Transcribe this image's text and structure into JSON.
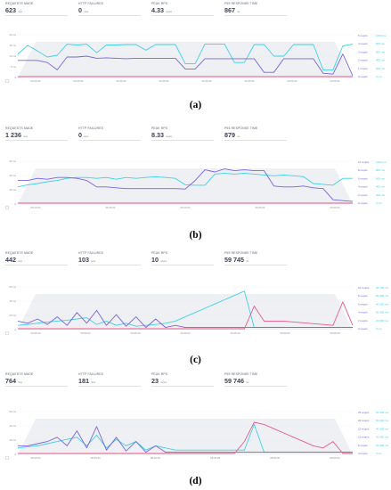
{
  "panels": [
    {
      "caption": "(a)",
      "stats": [
        {
          "label": "REQUESTS MADE",
          "value": "623",
          "unit": "reqs"
        },
        {
          "label": "HTTP FAILURES",
          "value": "0",
          "unit": "reqs"
        },
        {
          "label": "PEAK RPS",
          "value": "4.33",
          "unit": "reqs/s"
        },
        {
          "label": "P95 RESPONSE TIME",
          "value": "867",
          "unit": "ms"
        }
      ],
      "y_ticks": [
        "20 ms",
        "15 ms",
        "10 ms",
        "5 ms",
        "0"
      ],
      "x_ticks": [
        "09:20:00",
        "09:25:00",
        "09:30:00",
        "09:35:00",
        "09:40:00",
        "09:45:00",
        "09:50:00",
        "09:55:00"
      ],
      "right_labels": [
        "5 reqs/s",
        "4 reqs/s",
        "3 reqs/s",
        "2 reqs/s",
        "1 reqs/s",
        "0 reqs/s"
      ],
      "right_secondary": [
        "1000 ms",
        "800 ms",
        "600 ms",
        "400 ms",
        "200 ms",
        "0 ms"
      ],
      "series": [
        {
          "name": "",
          "color": "#3fd1e6",
          "values": [
            0.55,
            0.75,
            0.62,
            0.48,
            0.52,
            0.78,
            0.76,
            0.78,
            0.58,
            0.76,
            0.76,
            0.77,
            0.77,
            0.64,
            0.77,
            0.77,
            0.77,
            0.32,
            0.32,
            0.78,
            0.78,
            0.78,
            0.35,
            0.35,
            0.77,
            0.77,
            0.5,
            0.5,
            0.77,
            0.77,
            0.77,
            0.18,
            0.18,
            0.74,
            0.78
          ]
        },
        {
          "name": "",
          "color": "#7b63e0",
          "values": [
            0.4,
            0.4,
            0.4,
            0.35,
            0.18,
            0.48,
            0.48,
            0.5,
            0.45,
            0.46,
            0.45,
            0.44,
            0.45,
            0.45,
            0.45,
            0.45,
            0.45,
            0.2,
            0.2,
            0.44,
            0.44,
            0.44,
            0.44,
            0.44,
            0.44,
            0.12,
            0.12,
            0.44,
            0.44,
            0.44,
            0.44,
            0.1,
            0.08,
            0.55,
            0.04
          ]
        },
        {
          "name": "",
          "color": "#e85a8a",
          "values": [
            0.02,
            0.02,
            0.02,
            0.02,
            0.02,
            0.02,
            0.02,
            0.02,
            0.02,
            0.02,
            0.02,
            0.02,
            0.02,
            0.02,
            0.02,
            0.02,
            0.02,
            0.02,
            0.02,
            0.02,
            0.02,
            0.02,
            0.02,
            0.02,
            0.02,
            0.02,
            0.02,
            0.02,
            0.02,
            0.02,
            0.02,
            0.02,
            0.02,
            0.02,
            0.02
          ]
        }
      ]
    },
    {
      "caption": "(b)",
      "stats": [
        {
          "label": "REQUESTS MADE",
          "value": "1 236",
          "unit": "reqs"
        },
        {
          "label": "HTTP FAILURES",
          "value": "0",
          "unit": "reqs"
        },
        {
          "label": "PEAK RPS",
          "value": "8.33",
          "unit": "reqs/s"
        },
        {
          "label": "P95 RESPONSE TIME",
          "value": "879",
          "unit": "ms"
        }
      ],
      "y_ticks": [
        "60 ms",
        "40 ms",
        "20 ms",
        "0"
      ],
      "x_ticks": [
        "09:10:00",
        "09:15:00",
        "09:20:00",
        "09:25:00",
        "09:30:00"
      ],
      "right_labels": [
        "10 reqs/s",
        "8 reqs/s",
        "6 reqs/s",
        "4 reqs/s",
        "2 reqs/s",
        "0 reqs/s"
      ],
      "right_secondary": [
        "1000 ms",
        "800 ms",
        "600 ms",
        "400 ms",
        "200 ms",
        "0 ms"
      ],
      "series": [
        {
          "name": "",
          "color": "#3fd1e6",
          "values": [
            0.4,
            0.45,
            0.48,
            0.52,
            0.55,
            0.6,
            0.62,
            0.62,
            0.6,
            0.62,
            0.58,
            0.62,
            0.6,
            0.62,
            0.64,
            0.62,
            0.6,
            0.45,
            0.44,
            0.44,
            0.7,
            0.72,
            0.7,
            0.72,
            0.7,
            0.68,
            0.66,
            0.68,
            0.66,
            0.64,
            0.48,
            0.46,
            0.44,
            0.6,
            0.6
          ]
        },
        {
          "name": "",
          "color": "#7b63e0",
          "values": [
            0.55,
            0.55,
            0.6,
            0.58,
            0.62,
            0.62,
            0.6,
            0.55,
            0.4,
            0.4,
            0.38,
            0.36,
            0.36,
            0.36,
            0.36,
            0.36,
            0.36,
            0.35,
            0.55,
            0.8,
            0.75,
            0.82,
            0.78,
            0.8,
            0.78,
            0.78,
            0.42,
            0.4,
            0.4,
            0.42,
            0.38,
            0.36,
            0.1,
            0.08,
            0.06
          ]
        },
        {
          "name": "",
          "color": "#e85a8a",
          "values": [
            0.02,
            0.02,
            0.02,
            0.02,
            0.02,
            0.02,
            0.02,
            0.02,
            0.02,
            0.02,
            0.02,
            0.02,
            0.02,
            0.02,
            0.02,
            0.02,
            0.02,
            0.02,
            0.02,
            0.02,
            0.02,
            0.02,
            0.02,
            0.02,
            0.02,
            0.02,
            0.02,
            0.02,
            0.02,
            0.02,
            0.02,
            0.02,
            0.02,
            0.02,
            0.02
          ]
        }
      ]
    },
    {
      "caption": "(c)",
      "stats": [
        {
          "label": "REQUESTS MADE",
          "value": "442",
          "unit": "reqs"
        },
        {
          "label": "HTTP FAILURES",
          "value": "103",
          "unit": "reqs"
        },
        {
          "label": "PEAK RPS",
          "value": "10",
          "unit": "reqs/s"
        },
        {
          "label": "P95 RESPONSE TIME",
          "value": "59 745",
          "unit": "ms"
        }
      ],
      "y_ticks": [
        "60 ms",
        "40 ms",
        "20 ms",
        "0"
      ],
      "x_ticks": [
        "09:25:00",
        "09:30:00",
        "09:35:00",
        "09:40:00",
        "09:45:00",
        "09:50:00",
        "09:55:00"
      ],
      "right_labels": [
        "10 reqs/s",
        "8 reqs/s",
        "6 reqs/s",
        "4 reqs/s",
        "2 reqs/s",
        "0 reqs/s"
      ],
      "right_secondary": [
        "60 000 ms",
        "50 000 ms",
        "40 000 ms",
        "30 000 ms",
        "20 000 ms",
        "0 ms"
      ],
      "series": [
        {
          "name": "",
          "color": "#3fd1e6",
          "values": [
            0.1,
            0.12,
            0.15,
            0.18,
            0.2,
            0.22,
            0.25,
            0.28,
            0.12,
            0.2,
            0.1,
            0.15,
            0.08,
            0.1,
            0.12,
            0.15,
            0.2,
            0.3,
            0.4,
            0.5,
            0.6,
            0.7,
            0.8,
            0.9,
            0.05,
            0.05,
            0.05,
            0.05,
            0.05,
            0.05,
            0.05,
            0.05,
            0.05,
            0.05,
            0.05
          ]
        },
        {
          "name": "",
          "color": "#7b63e0",
          "values": [
            0.2,
            0.15,
            0.25,
            0.12,
            0.3,
            0.1,
            0.4,
            0.15,
            0.45,
            0.1,
            0.35,
            0.08,
            0.3,
            0.05,
            0.25,
            0.05,
            0.1,
            0.05,
            0.05,
            0.05,
            0.05,
            0.05,
            0.05,
            0.05,
            0.05,
            0.05,
            0.05,
            0.05,
            0.05,
            0.05,
            0.05,
            0.05,
            0.05,
            0.05,
            0.05
          ]
        },
        {
          "name": "",
          "color": "#e85a8a",
          "values": [
            0.02,
            0.02,
            0.02,
            0.02,
            0.02,
            0.02,
            0.02,
            0.02,
            0.02,
            0.02,
            0.02,
            0.02,
            0.02,
            0.02,
            0.02,
            0.02,
            0.02,
            0.02,
            0.02,
            0.02,
            0.02,
            0.02,
            0.02,
            0.02,
            0.55,
            0.2,
            0.2,
            0.2,
            0.18,
            0.16,
            0.14,
            0.12,
            0.1,
            0.65,
            0.1
          ]
        }
      ]
    },
    {
      "caption": "(d)",
      "stats": [
        {
          "label": "REQUESTS MADE",
          "value": "764",
          "unit": "reqs"
        },
        {
          "label": "HTTP FAILURES",
          "value": "181",
          "unit": "reqs"
        },
        {
          "label": "PEAK RPS",
          "value": "23",
          "unit": "reqs/s"
        },
        {
          "label": "P95 RESPONSE TIME",
          "value": "59 746",
          "unit": "ms"
        }
      ],
      "y_ticks": [
        "60 ms",
        "40 ms",
        "20 ms",
        "0"
      ],
      "x_ticks": [
        "08:30:00",
        "08:35:00",
        "08:40:00",
        "08:45:00",
        "08:50:00",
        "08:55:00"
      ],
      "right_labels": [
        "25 reqs/s",
        "20 reqs/s",
        "15 reqs/s",
        "10 reqs/s",
        "5 reqs/s",
        "0 reqs/s"
      ],
      "right_secondary": [
        "60 000 ms",
        "50 000 ms",
        "40 000 ms",
        "30 000 ms",
        "20 000 ms",
        "0 ms"
      ],
      "series": [
        {
          "name": "",
          "color": "#3fd1e6",
          "values": [
            0.15,
            0.18,
            0.2,
            0.25,
            0.3,
            0.35,
            0.4,
            0.2,
            0.45,
            0.15,
            0.35,
            0.2,
            0.3,
            0.1,
            0.2,
            0.15,
            0.1,
            0.1,
            0.1,
            0.1,
            0.1,
            0.1,
            0.1,
            0.1,
            0.7,
            0.05,
            0.05,
            0.05,
            0.05,
            0.05,
            0.05,
            0.05,
            0.05,
            0.05,
            0.05
          ]
        },
        {
          "name": "",
          "color": "#7b63e0",
          "values": [
            0.2,
            0.2,
            0.25,
            0.3,
            0.4,
            0.2,
            0.55,
            0.15,
            0.65,
            0.1,
            0.4,
            0.08,
            0.3,
            0.05,
            0.2,
            0.05,
            0.05,
            0.05,
            0.05,
            0.05,
            0.05,
            0.05,
            0.05,
            0.05,
            0.05,
            0.05,
            0.05,
            0.05,
            0.05,
            0.05,
            0.05,
            0.05,
            0.05,
            0.05,
            0.05
          ]
        },
        {
          "name": "",
          "color": "#e85a8a",
          "values": [
            0.02,
            0.02,
            0.02,
            0.02,
            0.02,
            0.02,
            0.02,
            0.02,
            0.02,
            0.02,
            0.02,
            0.02,
            0.02,
            0.02,
            0.02,
            0.02,
            0.02,
            0.02,
            0.02,
            0.02,
            0.02,
            0.02,
            0.02,
            0.3,
            0.75,
            0.7,
            0.6,
            0.5,
            0.4,
            0.3,
            0.2,
            0.15,
            0.3,
            0.02,
            0.02
          ]
        }
      ]
    }
  ]
}
